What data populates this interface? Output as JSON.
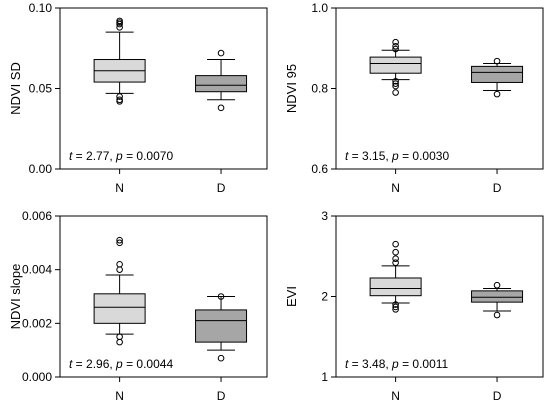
{
  "colors": {
    "N": "#d9d9d9",
    "D": "#a6a6a6",
    "stroke": "#000000"
  },
  "chart_data": [
    {
      "type": "box",
      "ylabel": "NDVI SD",
      "ylim": [
        0.0,
        0.1
      ],
      "yticks": [
        "0.00",
        "0.05",
        "0.10"
      ],
      "tickvals": [
        0.0,
        0.05,
        0.1
      ],
      "categories": [
        "N",
        "D"
      ],
      "stat": {
        "t_label": "t",
        "t_value": " = 2.77, ",
        "p_label": "p",
        "p_value": " = 0.0070"
      },
      "boxes": [
        {
          "whisker_low": 0.047,
          "q1": 0.054,
          "median": 0.061,
          "q3": 0.068,
          "whisker_high": 0.085,
          "outliers": [
            0.092,
            0.091,
            0.09,
            0.088,
            0.045,
            0.043,
            0.042
          ]
        },
        {
          "whisker_low": 0.043,
          "q1": 0.048,
          "median": 0.052,
          "q3": 0.058,
          "whisker_high": 0.068,
          "outliers": [
            0.072,
            0.038
          ]
        }
      ]
    },
    {
      "type": "box",
      "ylabel": "NDVI 95",
      "ylim": [
        0.6,
        1.0
      ],
      "yticks": [
        "0.6",
        "0.8",
        "1.0"
      ],
      "tickvals": [
        0.6,
        0.8,
        1.0
      ],
      "categories": [
        "N",
        "D"
      ],
      "stat": {
        "t_label": "t",
        "t_value": " = 3.15, ",
        "p_label": "p",
        "p_value": " = 0.0030"
      },
      "boxes": [
        {
          "whisker_low": 0.822,
          "q1": 0.838,
          "median": 0.862,
          "q3": 0.878,
          "whisker_high": 0.895,
          "outliers": [
            0.915,
            0.905,
            0.898,
            0.818,
            0.812,
            0.806,
            0.79
          ]
        },
        {
          "whisker_low": 0.795,
          "q1": 0.815,
          "median": 0.84,
          "q3": 0.855,
          "whisker_high": 0.862,
          "outliers": [
            0.868,
            0.786
          ]
        }
      ]
    },
    {
      "type": "box",
      "ylabel": "NDVI slope",
      "ylim": [
        0.0,
        0.006
      ],
      "yticks": [
        "0.000",
        "0.002",
        "0.004",
        "0.006"
      ],
      "tickvals": [
        0.0,
        0.002,
        0.004,
        0.006
      ],
      "categories": [
        "N",
        "D"
      ],
      "stat": {
        "t_label": "t",
        "t_value": " = 2.96, ",
        "p_label": "p",
        "p_value": " = 0.0044"
      },
      "boxes": [
        {
          "whisker_low": 0.0016,
          "q1": 0.002,
          "median": 0.0026,
          "q3": 0.0031,
          "whisker_high": 0.0038,
          "outliers": [
            0.0051,
            0.005,
            0.0042,
            0.004,
            0.0015,
            0.0013
          ]
        },
        {
          "whisker_low": 0.001,
          "q1": 0.0013,
          "median": 0.0021,
          "q3": 0.0025,
          "whisker_high": 0.003,
          "outliers": [
            0.003,
            0.0007
          ]
        }
      ]
    },
    {
      "type": "box",
      "ylabel": "EVI",
      "ylim": [
        1.0,
        3.0
      ],
      "yticks": [
        "1",
        "2",
        "3"
      ],
      "tickvals": [
        1.0,
        2.0,
        3.0
      ],
      "categories": [
        "N",
        "D"
      ],
      "stat": {
        "t_label": "t",
        "t_value": " = 3.48, ",
        "p_label": "p",
        "p_value": " = 0.0011"
      },
      "boxes": [
        {
          "whisker_low": 1.92,
          "q1": 2.01,
          "median": 2.1,
          "q3": 2.23,
          "whisker_high": 2.38,
          "outliers": [
            2.65,
            2.55,
            2.47,
            2.42,
            1.9,
            1.87,
            1.84
          ]
        },
        {
          "whisker_low": 1.82,
          "q1": 1.93,
          "median": 1.99,
          "q3": 2.07,
          "whisker_high": 2.1,
          "outliers": [
            2.14,
            1.77
          ]
        }
      ]
    }
  ]
}
